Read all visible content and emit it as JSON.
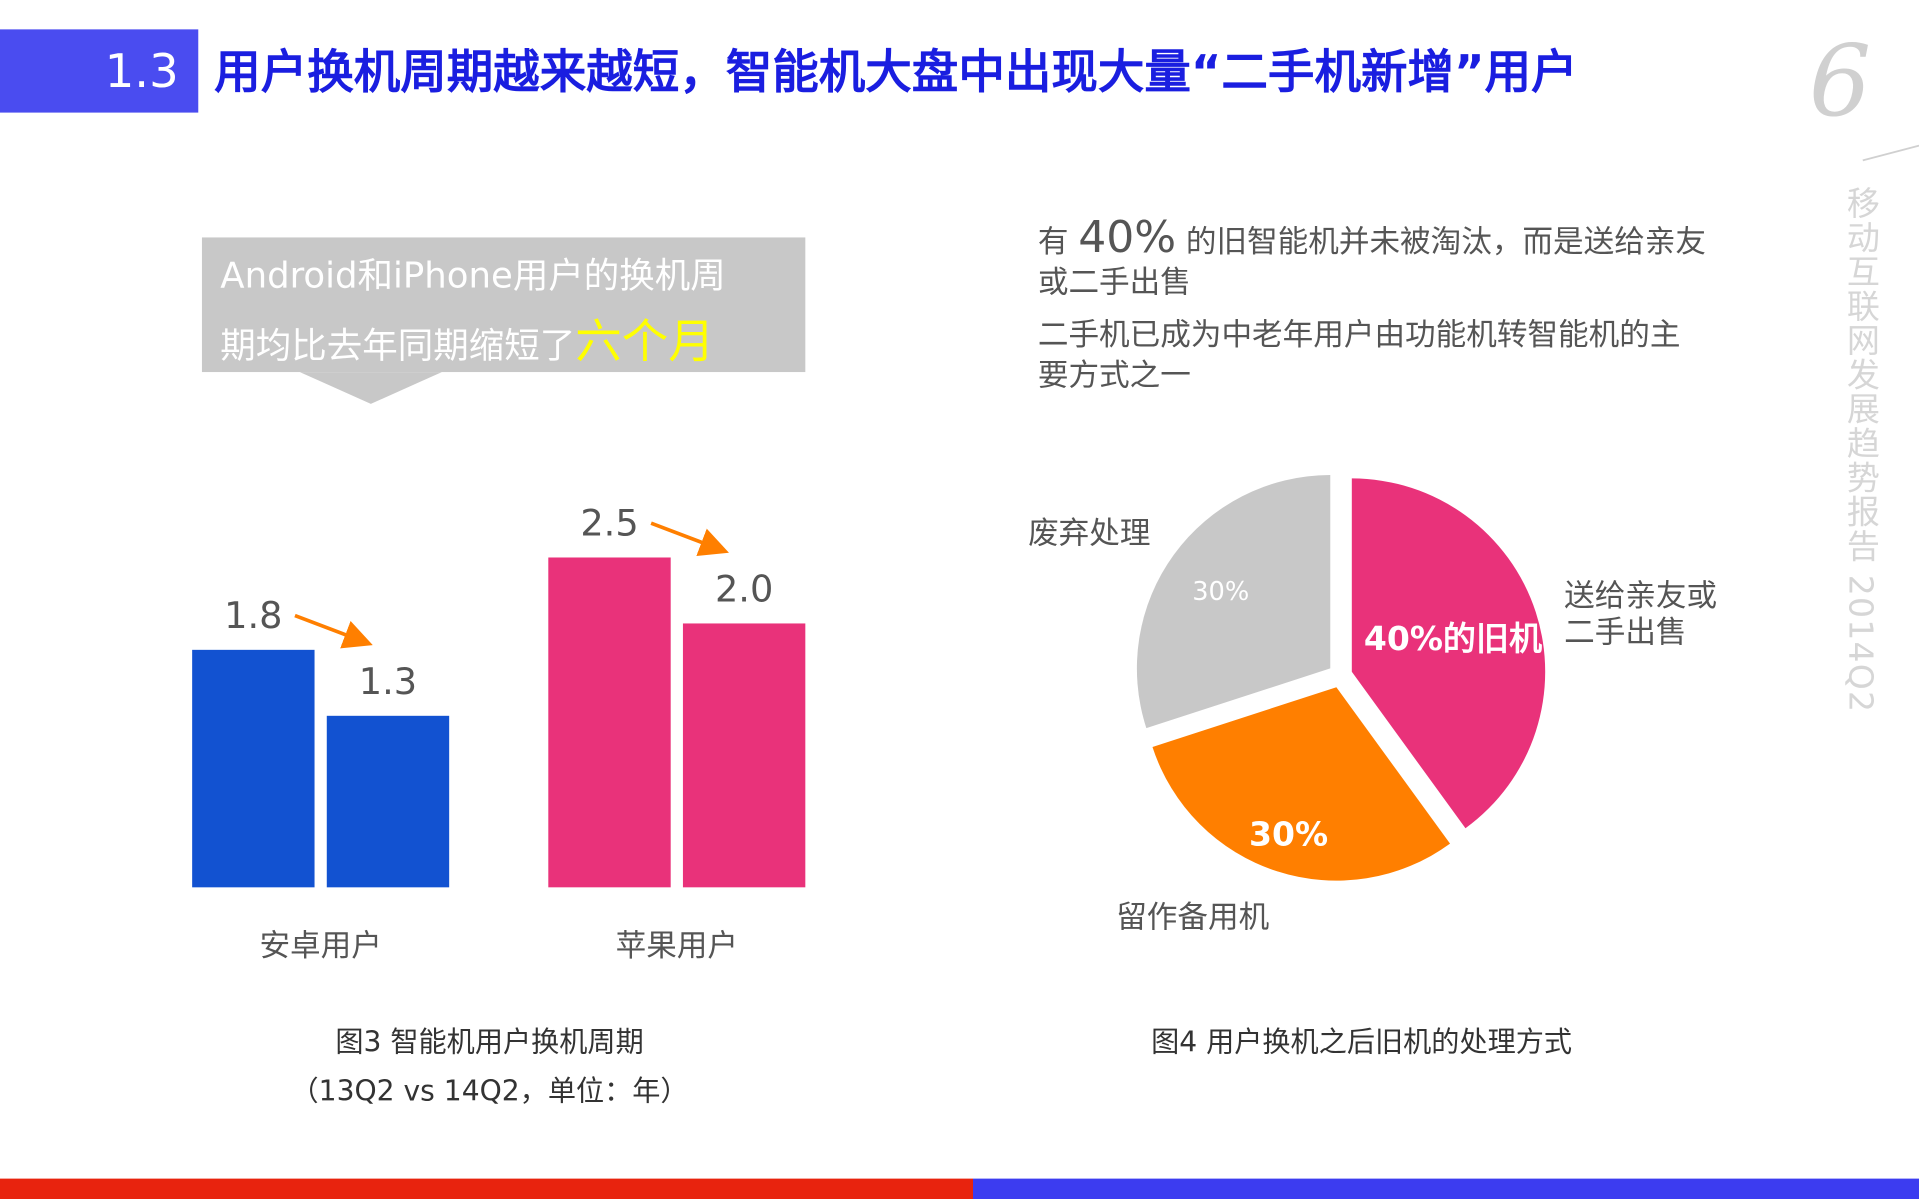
{
  "header": {
    "section": "1.3",
    "title": "用户换机周期越来越短，智能机大盘中出现大量“二手机新增”用户",
    "page": "6",
    "side": "移动互联网发展趋势报告 2014Q2"
  },
  "chart_data": [
    {
      "type": "bar",
      "callout": {
        "text": "Android和iPhone用户的换机周期均比去年同期缩短了",
        "highlight": "六个月"
      },
      "categories": [
        "安卓用户",
        "苹果用户"
      ],
      "colors": [
        "#1252d1",
        "#e9327a"
      ],
      "series": [
        {
          "values": [
            1.8,
            2.5
          ]
        },
        {
          "values": [
            1.3,
            2.0
          ],
          "value_labels": [
            "1.3",
            "2.0"
          ]
        }
      ],
      "caption": [
        "图3 智能机用户换机周期",
        "（13Q2 vs 14Q2，单位：年）"
      ]
    },
    {
      "type": "pie",
      "notes": [
        {
          "before": "有 ",
          "highlight": "40%",
          "after": " 的旧智能机并未被淘汰，而是送给亲友或二手出售"
        },
        "二手机已成为中老年用户由功能机转智能机的主要方式之一"
      ],
      "categories": [
        "送给亲友或二手出售",
        "留作备用机",
        "废弃处理"
      ],
      "values": [
        40,
        30,
        30
      ],
      "value_labels": [
        "40%的旧机",
        "30%",
        "30%"
      ],
      "colors": [
        "#e9327a",
        "#ff7f00",
        "#c8c8c8"
      ],
      "caption": "图4 用户换机之后旧机的处理方式"
    }
  ]
}
